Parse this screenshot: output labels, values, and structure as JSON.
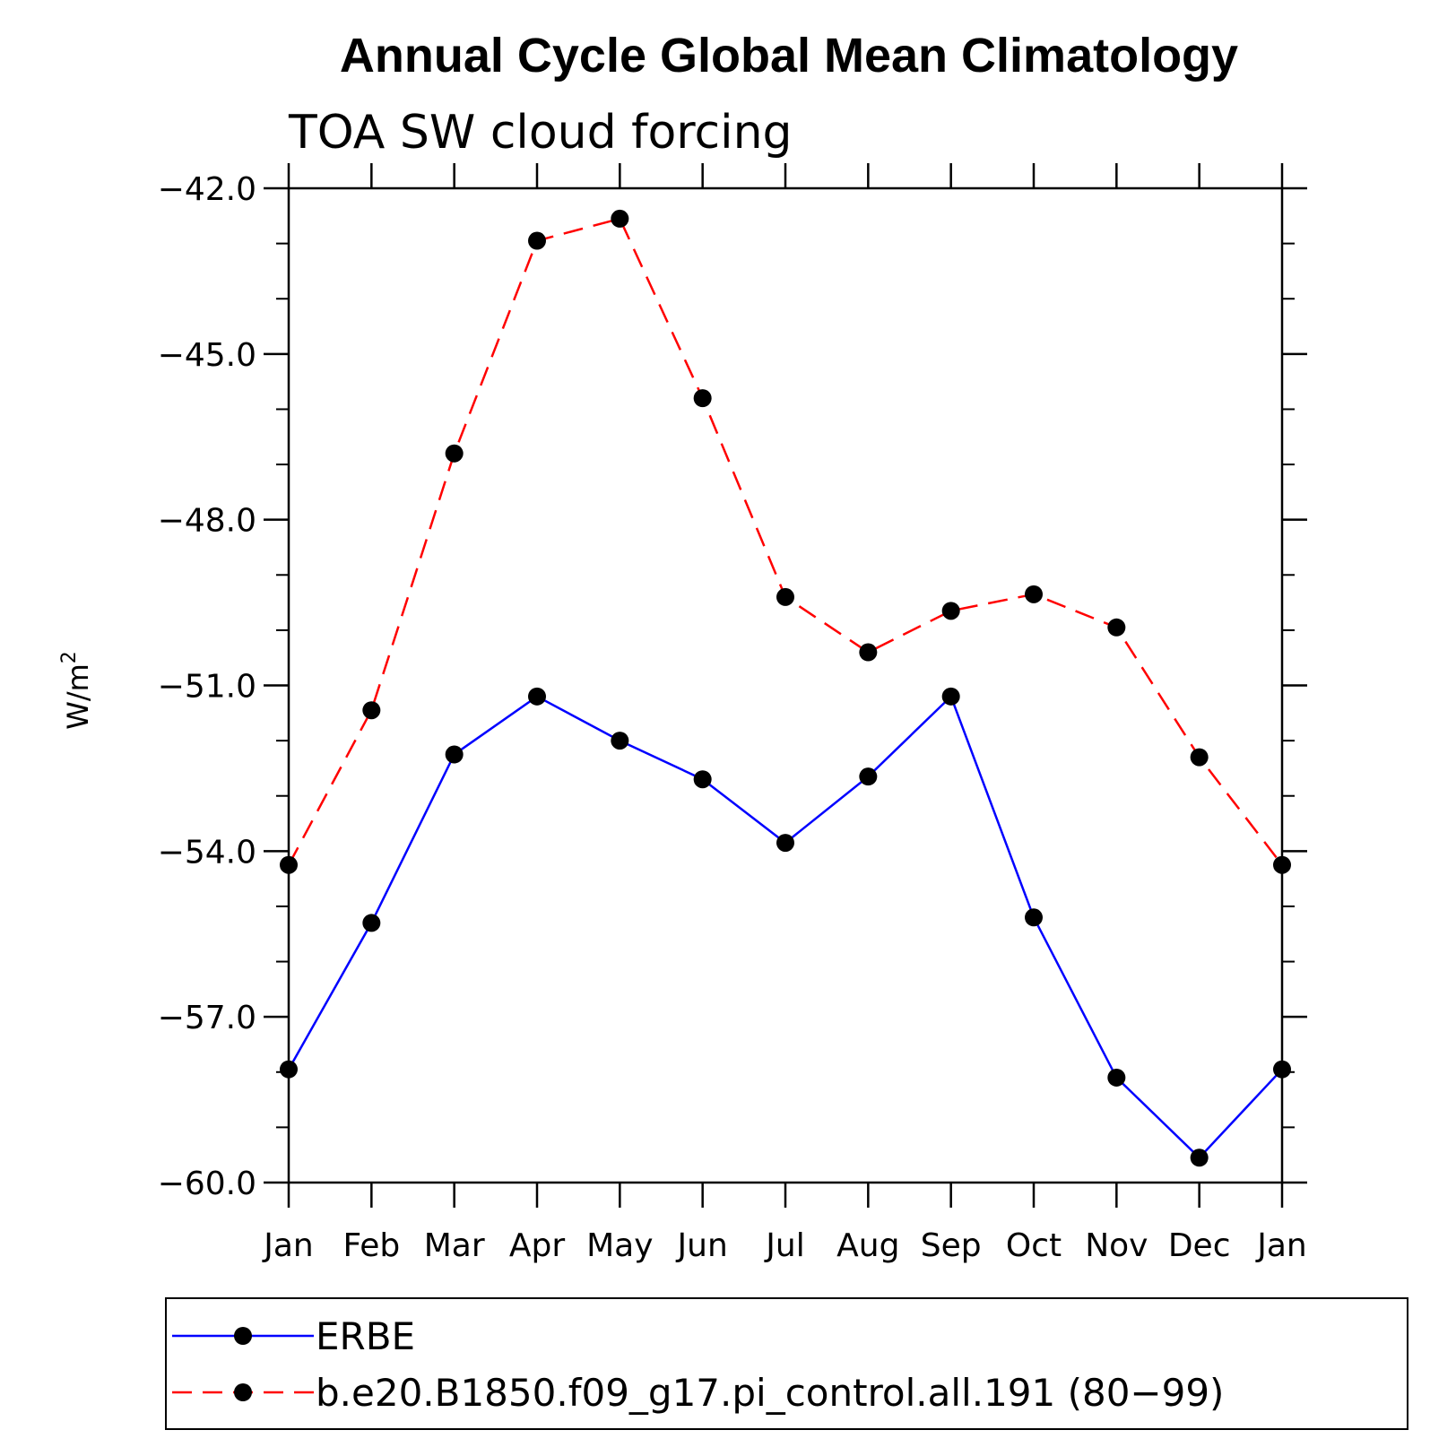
{
  "chart_data": {
    "type": "line",
    "title": "Annual Cycle Global Mean Climatology",
    "subtitle": "TOA SW cloud forcing",
    "xlabel": "",
    "ylabel": "W/m",
    "ylabel_superscript": "2",
    "categories": [
      "Jan",
      "Feb",
      "Mar",
      "Apr",
      "May",
      "Jun",
      "Jul",
      "Aug",
      "Sep",
      "Oct",
      "Nov",
      "Dec",
      "Jan"
    ],
    "ylim": [
      -60.0,
      -42.0
    ],
    "yticks": [
      -60.0,
      -57.0,
      -54.0,
      -51.0,
      -48.0,
      -45.0,
      -42.0
    ],
    "ytick_labels": [
      "−60.0",
      "−57.0",
      "−54.0",
      "−51.0",
      "−48.0",
      "−45.0",
      "−42.0"
    ],
    "y_minor_step": 1.0,
    "grid": false,
    "legend_position": "bottom",
    "series": [
      {
        "name": "ERBE",
        "color": "#0000ff",
        "line_style": "solid",
        "marker": "filled-circle",
        "values": [
          -57.95,
          -55.3,
          -52.25,
          -51.2,
          -52.0,
          -52.7,
          -53.85,
          -52.65,
          -51.2,
          -55.2,
          -58.1,
          -59.55,
          -57.95
        ]
      },
      {
        "name": "b.e20.B1850.f09_g17.pi_control.all.191 (80−99)",
        "color": "#ff0000",
        "line_style": "dashed",
        "marker": "filled-circle",
        "values": [
          -54.25,
          -51.45,
          -46.8,
          -42.95,
          -42.55,
          -45.8,
          -49.4,
          -50.4,
          -49.65,
          -49.35,
          -49.95,
          -52.3,
          -54.25
        ]
      }
    ]
  }
}
